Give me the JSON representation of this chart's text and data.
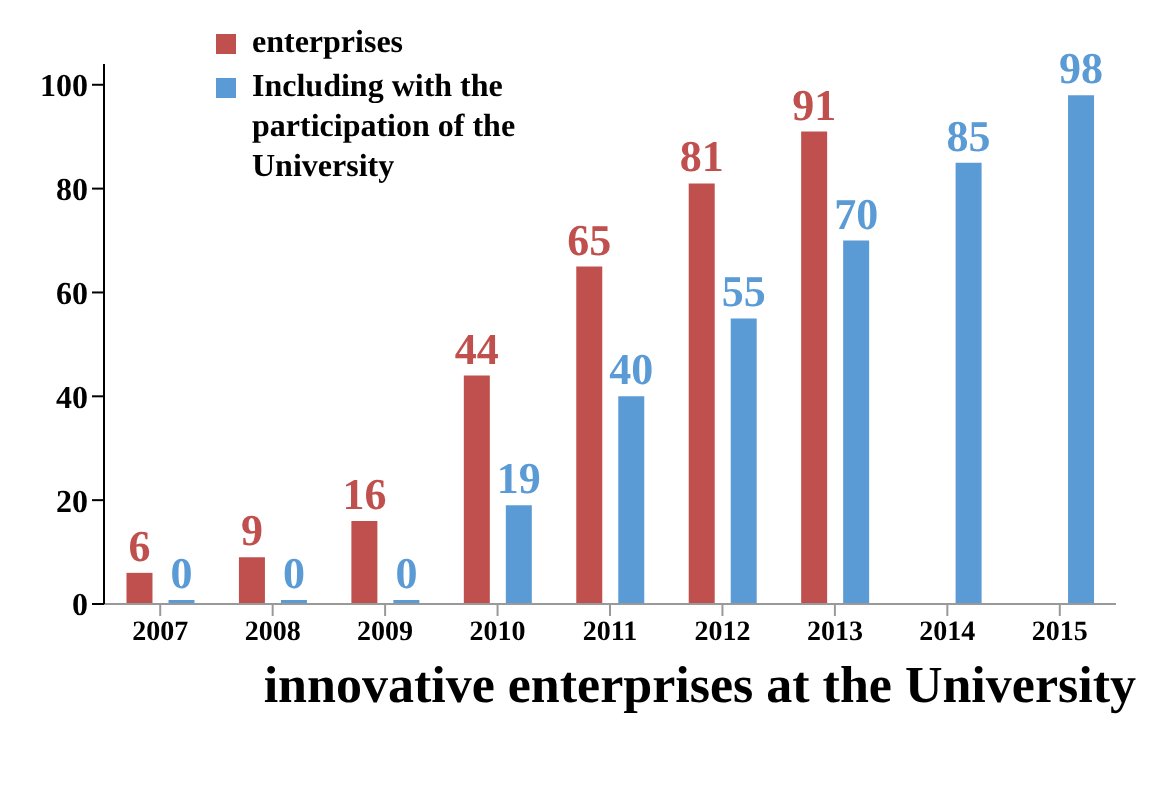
{
  "chart_data": {
    "type": "bar",
    "title": "innovative enterprises at the University",
    "categories": [
      "2007",
      "2008",
      "2009",
      "2010",
      "2011",
      "2012",
      "2013",
      "2014",
      "2015"
    ],
    "series": [
      {
        "name": "enterprises",
        "color": "#c0504d",
        "values": [
          6,
          9,
          16,
          44,
          65,
          81,
          91,
          null,
          null
        ]
      },
      {
        "name": "Including with the participation of the University",
        "color": "#5b9bd5",
        "values": [
          0,
          0,
          0,
          19,
          40,
          55,
          70,
          85,
          98
        ]
      }
    ],
    "ylim": [
      0,
      104
    ],
    "yticks": [
      0,
      20,
      40,
      60,
      80,
      100
    ],
    "legend": "top left",
    "data_labels": true
  }
}
